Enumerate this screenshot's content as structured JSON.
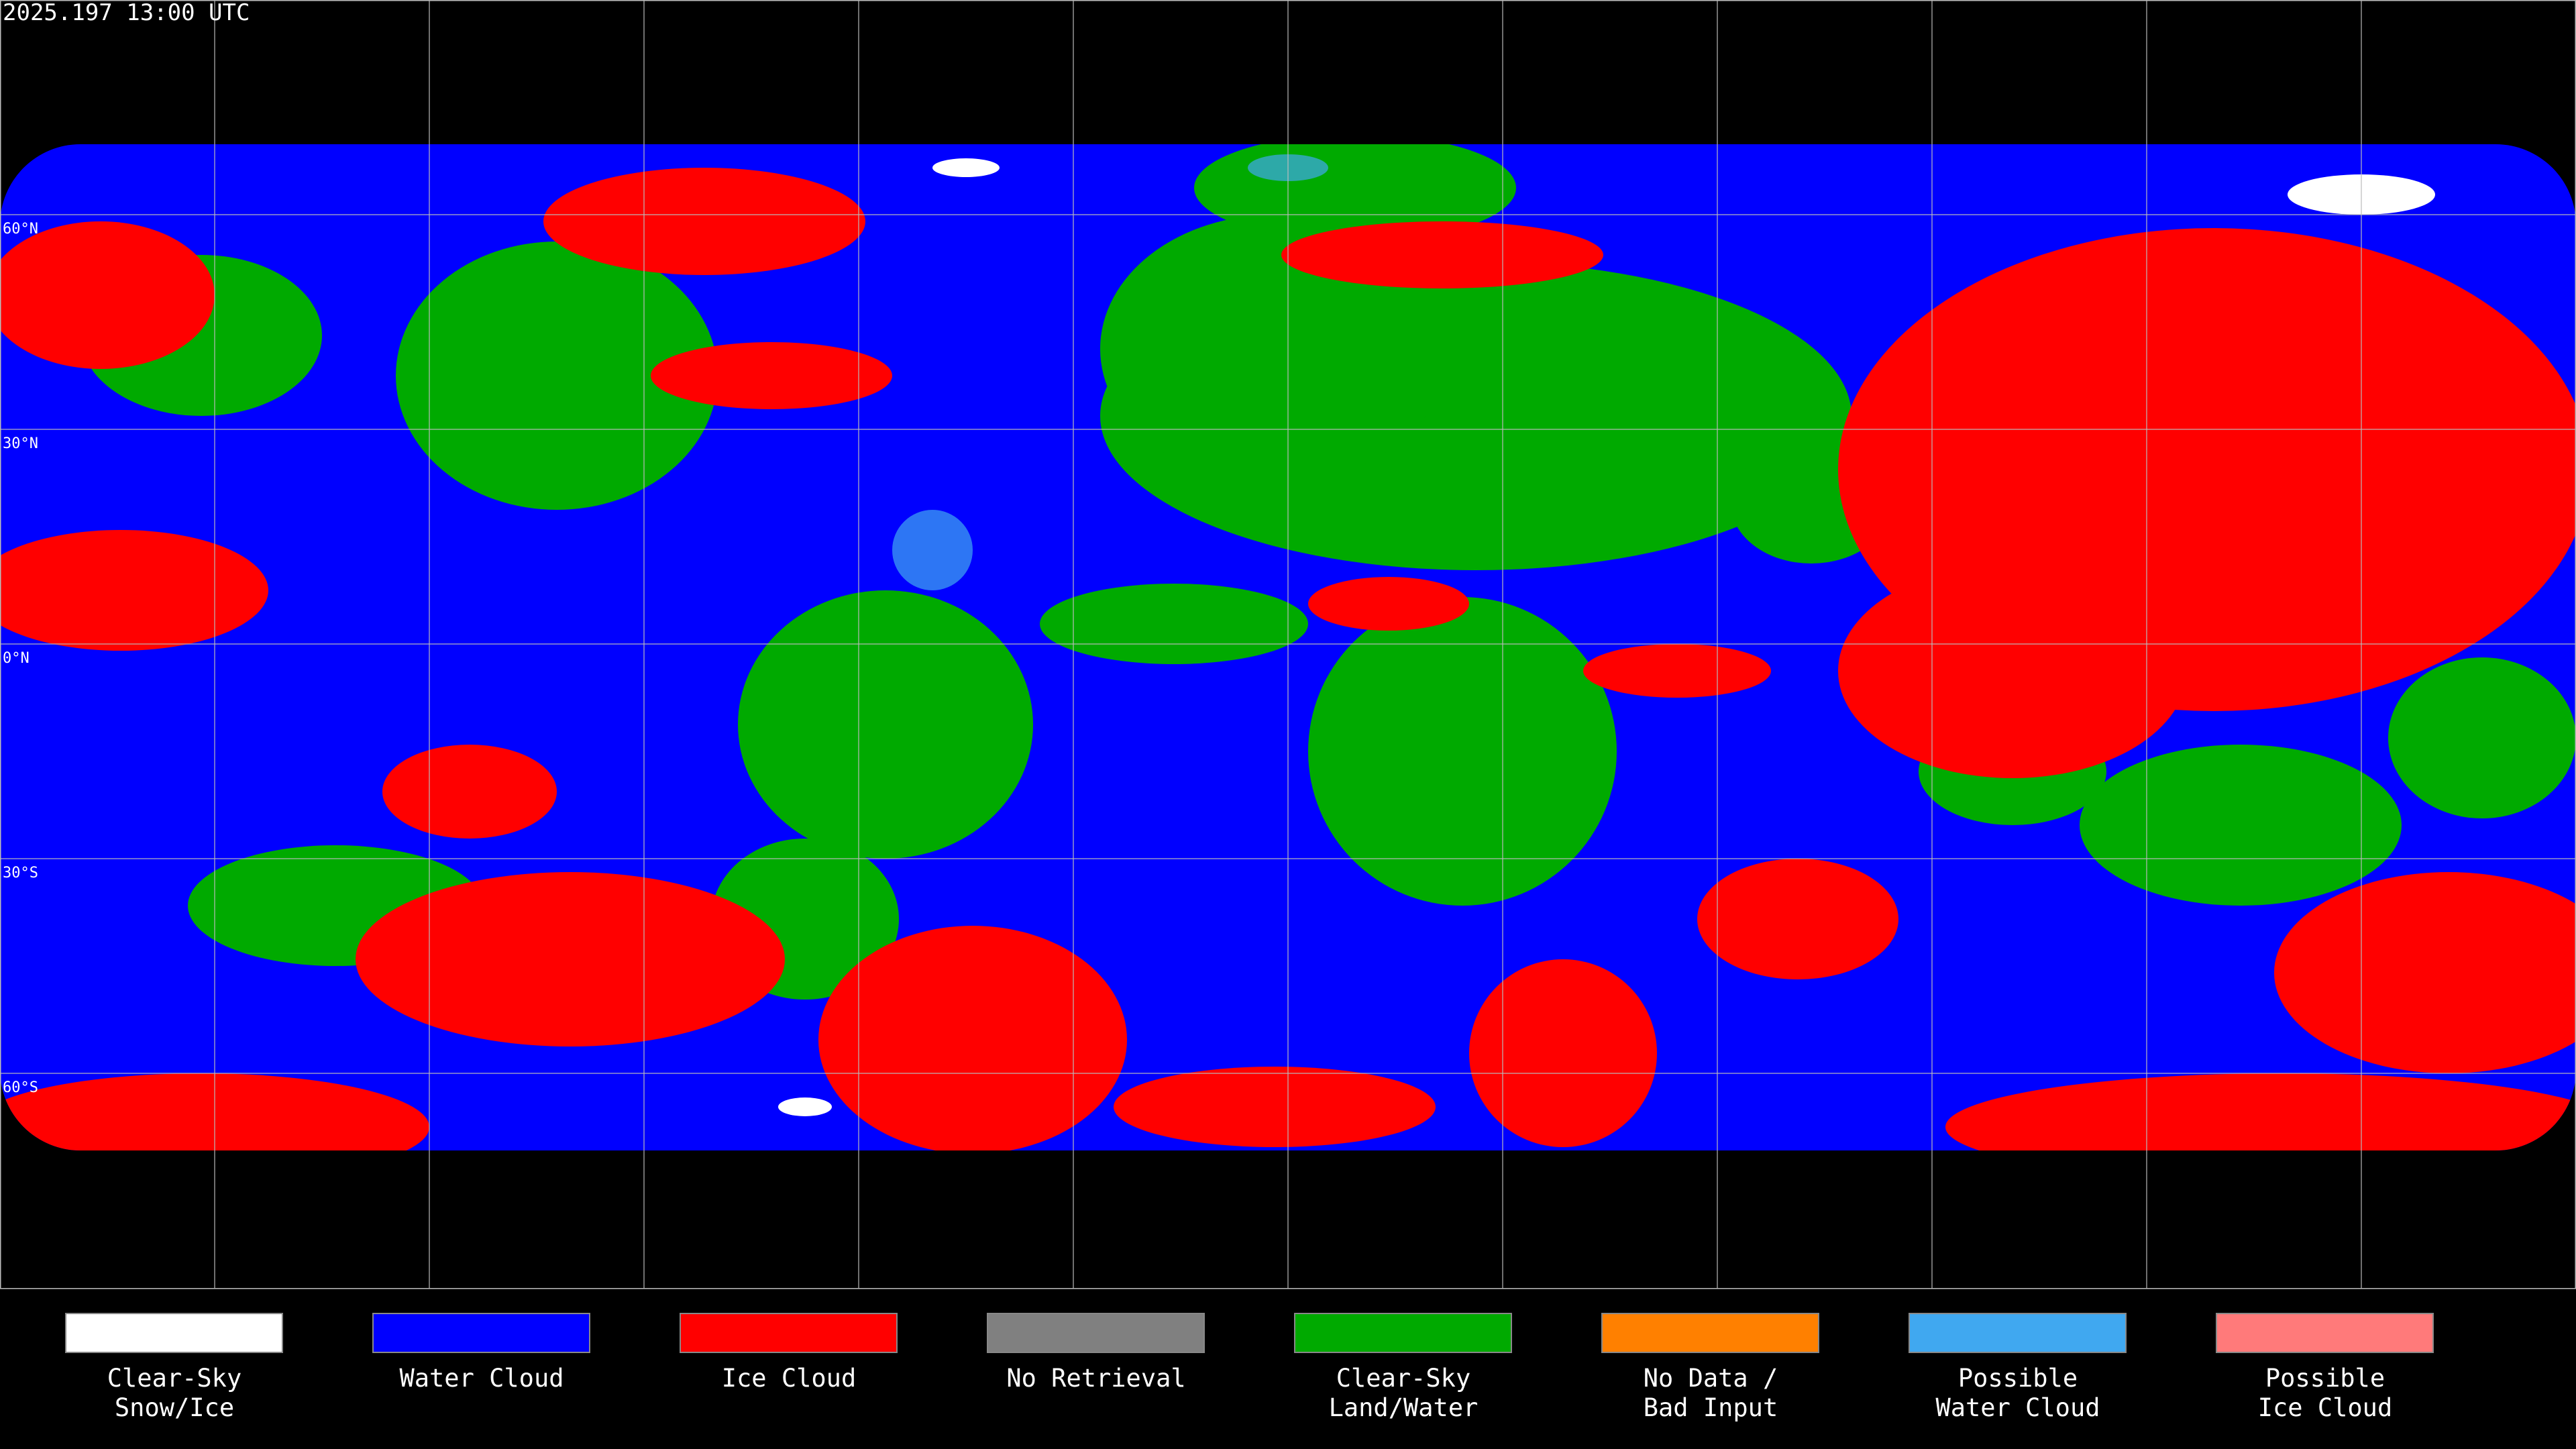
{
  "header": {
    "title": "2025.197 13:00 UTC"
  },
  "map": {
    "latitude_labels": [
      {
        "value": 60,
        "label": "60°N"
      },
      {
        "value": 30,
        "label": "30°N"
      },
      {
        "value": 0,
        "label": "0°N"
      },
      {
        "value": -30,
        "label": "30°S"
      },
      {
        "value": -60,
        "label": "60°S"
      }
    ]
  },
  "legend": {
    "items": [
      {
        "color": "#ffffff",
        "label": [
          "Clear-Sky",
          "Snow/Ice"
        ]
      },
      {
        "color": "#0000ff",
        "label": [
          "Water Cloud"
        ]
      },
      {
        "color": "#ff0000",
        "label": [
          "Ice Cloud"
        ]
      },
      {
        "color": "#808080",
        "label": [
          "No Retrieval"
        ]
      },
      {
        "color": "#00aa00",
        "label": [
          "Clear-Sky",
          "Land/Water"
        ]
      },
      {
        "color": "#ff8000",
        "label": [
          "No Data /",
          "Bad Input"
        ]
      },
      {
        "color": "#40a8f0",
        "label": [
          "Possible",
          "Water Cloud"
        ]
      },
      {
        "color": "#ff7a7a",
        "label": [
          "Possible",
          "Ice Cloud"
        ]
      }
    ]
  }
}
